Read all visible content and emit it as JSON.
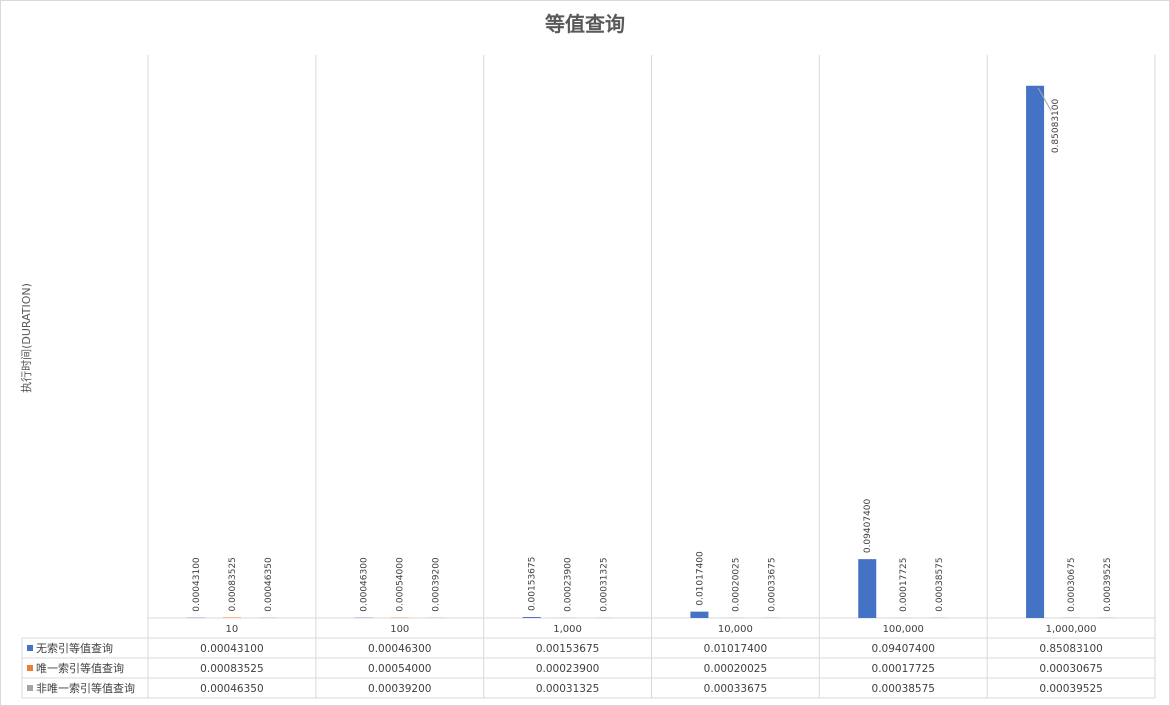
{
  "chart_data": {
    "type": "bar",
    "title": "等值查询",
    "xlabel": "",
    "ylabel": "执行时间(DURATION)",
    "ylim": [
      0,
      0.9
    ],
    "grid": false,
    "legend": "data-table-left",
    "categories": [
      "10",
      "100",
      "1,000",
      "10,000",
      "100,000",
      "1,000,000"
    ],
    "series": [
      {
        "name": "无索引等值查询",
        "color": "#4472C4",
        "values": [
          0.000431,
          0.000463,
          0.00153675,
          0.010174,
          0.094074,
          0.850831
        ],
        "labels": [
          "0.00043100",
          "0.00046300",
          "0.00153675",
          "0.01017400",
          "0.09407400",
          "0.85083100"
        ]
      },
      {
        "name": "唯一索引等值查询",
        "color": "#ED7D31",
        "values": [
          0.00083525,
          0.00054,
          0.000239,
          0.00020025,
          0.00017725,
          0.00030675
        ],
        "labels": [
          "0.00083525",
          "0.00054000",
          "0.00023900",
          "0.00020025",
          "0.00017725",
          "0.00030675"
        ]
      },
      {
        "name": "非唯一索引等值查询",
        "color": "#A5A5A5",
        "values": [
          0.0004635,
          0.000392,
          0.00031325,
          0.00033675,
          0.00038575,
          0.00039525
        ],
        "labels": [
          "0.00046350",
          "0.00039200",
          "0.00031325",
          "0.00033675",
          "0.00038575",
          "0.00039525"
        ]
      }
    ]
  }
}
